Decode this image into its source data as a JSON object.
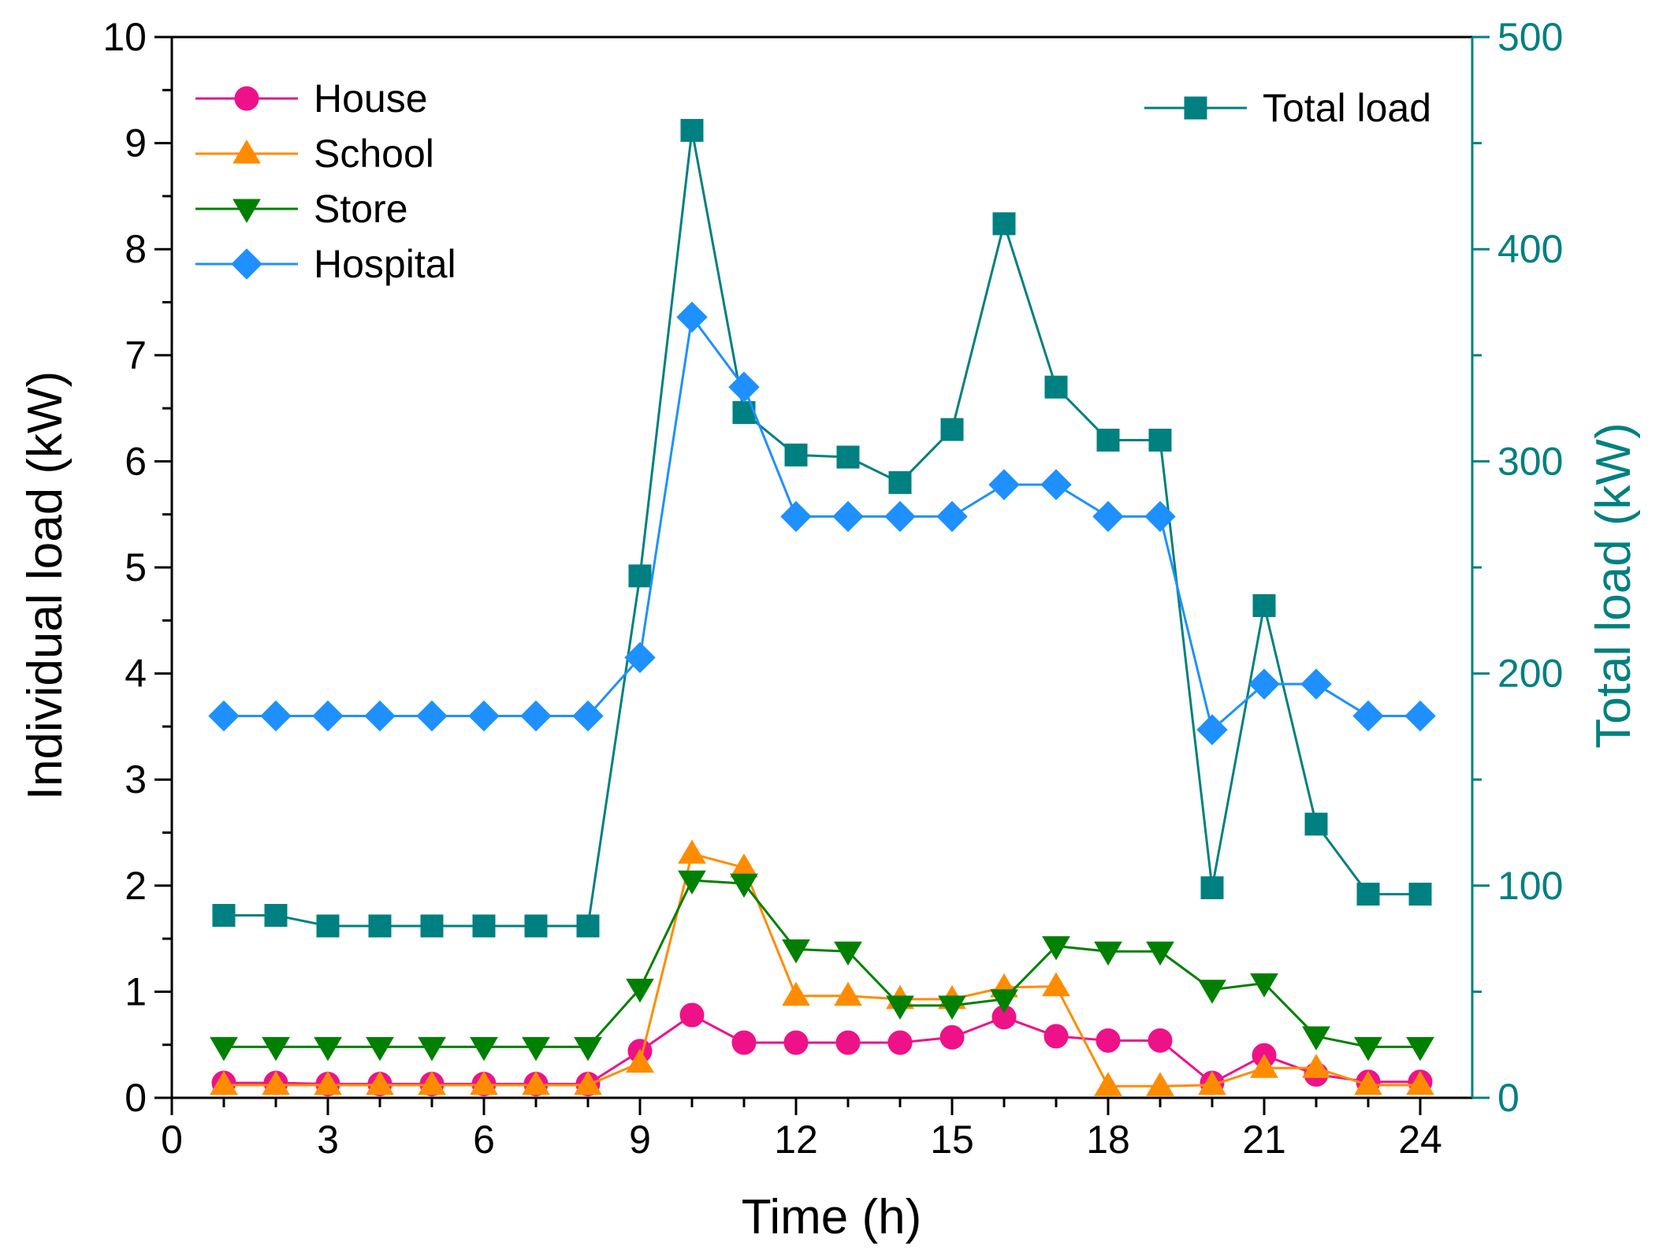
{
  "chart_data": {
    "type": "line",
    "xlabel": "Time (h)",
    "ylabel": "Individual load (kW)",
    "y2label": "Total load (kW)",
    "xlim": [
      0,
      25
    ],
    "ylim": [
      0,
      10
    ],
    "y2lim": [
      0,
      500
    ],
    "xticks": [
      0,
      3,
      6,
      9,
      12,
      15,
      18,
      21,
      24
    ],
    "yticks": [
      0,
      1,
      2,
      3,
      4,
      5,
      6,
      7,
      8,
      9,
      10
    ],
    "y2ticks": [
      0,
      100,
      200,
      300,
      400,
      500
    ],
    "grid": false,
    "legend_left": "top-left",
    "legend_right": "top-right",
    "x": [
      1,
      2,
      3,
      4,
      5,
      6,
      7,
      8,
      9,
      10,
      11,
      12,
      13,
      14,
      15,
      16,
      17,
      18,
      19,
      20,
      21,
      22,
      23,
      24
    ],
    "series": [
      {
        "name": "House",
        "axis": "left",
        "marker": "circle",
        "color": "#ee1289",
        "values": [
          0.14,
          0.14,
          0.13,
          0.13,
          0.13,
          0.13,
          0.13,
          0.13,
          0.44,
          0.78,
          0.52,
          0.52,
          0.52,
          0.52,
          0.57,
          0.76,
          0.58,
          0.54,
          0.54,
          0.14,
          0.4,
          0.22,
          0.15,
          0.15
        ]
      },
      {
        "name": "School",
        "axis": "left",
        "marker": "triangle-up",
        "color": "#ff8c00",
        "values": [
          0.12,
          0.12,
          0.12,
          0.12,
          0.12,
          0.12,
          0.12,
          0.12,
          0.33,
          2.3,
          2.17,
          0.96,
          0.96,
          0.93,
          0.93,
          1.04,
          1.05,
          0.11,
          0.11,
          0.12,
          0.28,
          0.28,
          0.12,
          0.12
        ]
      },
      {
        "name": "Store",
        "axis": "left",
        "marker": "triangle-down",
        "color": "#008000",
        "values": [
          0.48,
          0.48,
          0.48,
          0.48,
          0.48,
          0.48,
          0.48,
          0.48,
          1.03,
          2.05,
          2.02,
          1.4,
          1.38,
          0.87,
          0.87,
          0.93,
          1.43,
          1.38,
          1.38,
          1.02,
          1.08,
          0.58,
          0.48,
          0.48
        ]
      },
      {
        "name": "Hospital",
        "axis": "left",
        "marker": "diamond",
        "color": "#1e90ff",
        "values": [
          3.6,
          3.6,
          3.6,
          3.6,
          3.6,
          3.6,
          3.6,
          3.6,
          4.15,
          7.36,
          6.7,
          5.48,
          5.48,
          5.48,
          5.48,
          5.78,
          5.78,
          5.48,
          5.48,
          3.47,
          3.9,
          3.9,
          3.6,
          3.6
        ]
      },
      {
        "name": "Total load",
        "axis": "right",
        "marker": "square",
        "color": "#008080",
        "values": [
          86,
          86,
          81,
          81,
          81,
          81,
          81,
          81,
          246,
          456,
          323,
          303,
          302,
          290,
          315,
          412,
          335,
          310,
          310,
          99,
          232,
          129,
          96,
          96
        ]
      }
    ]
  }
}
